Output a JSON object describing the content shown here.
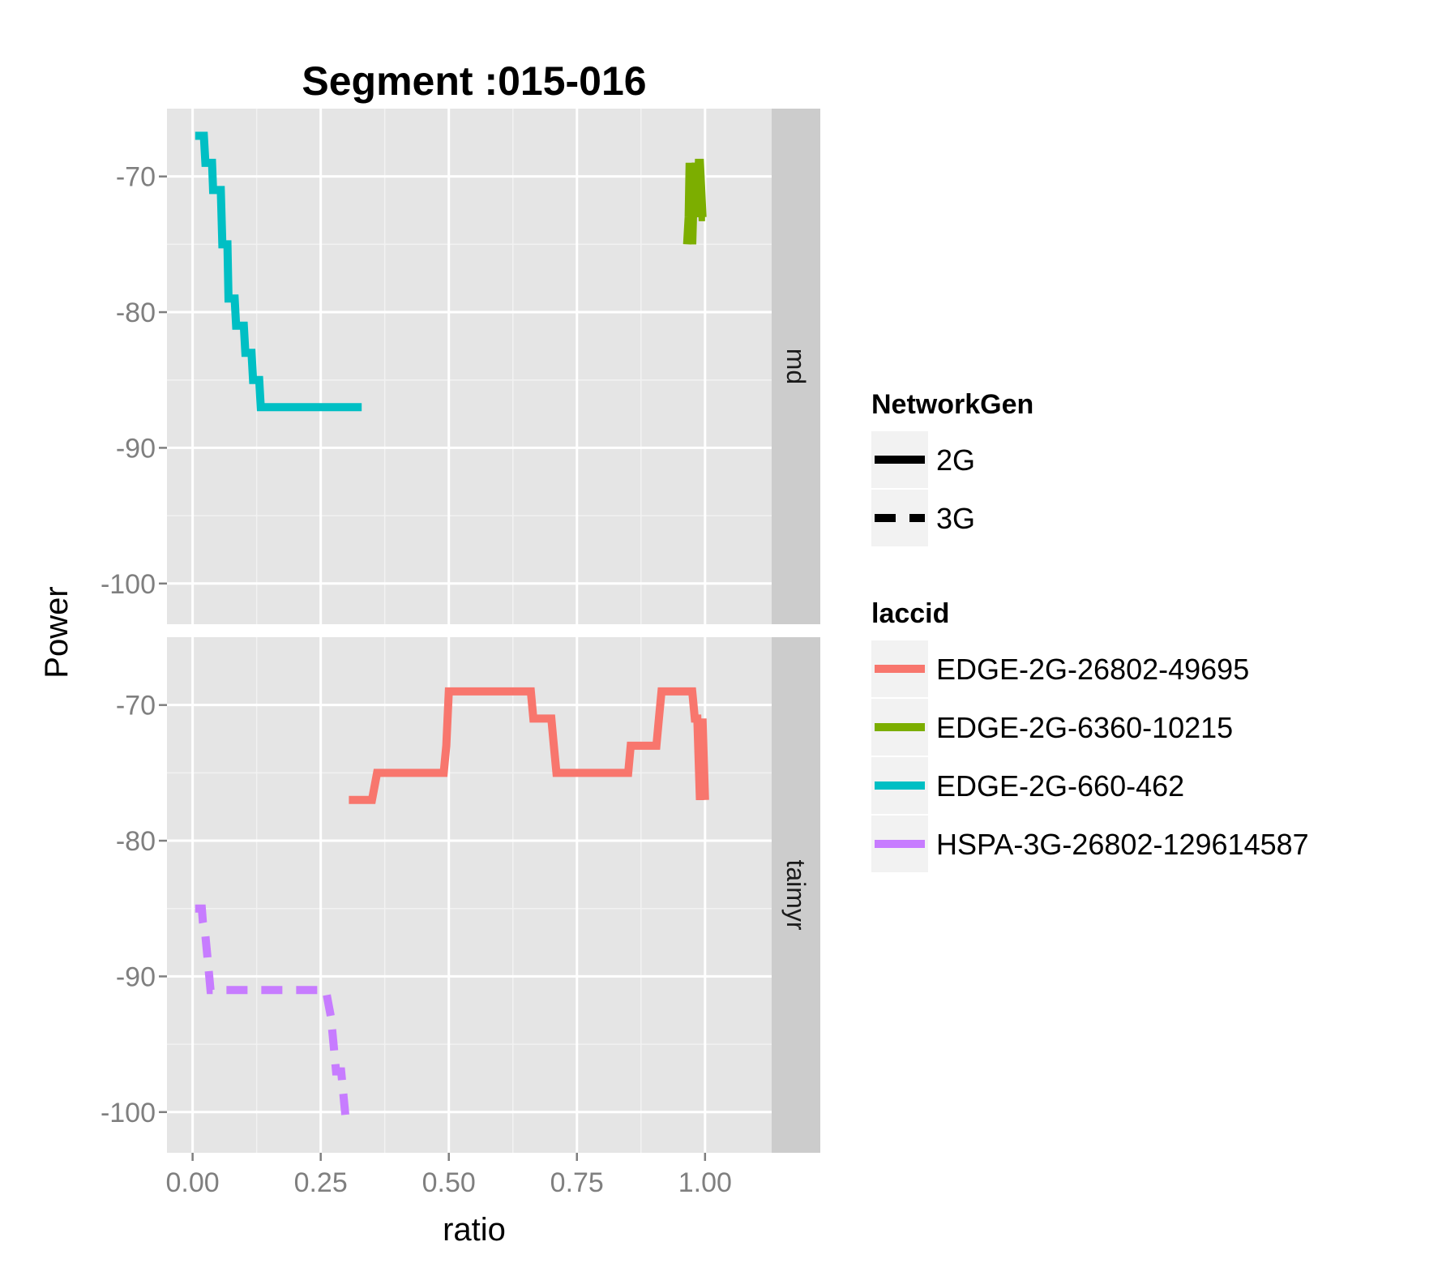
{
  "chart_data": {
    "type": "line",
    "title": "Segment :015-016",
    "xlabel": "ratio",
    "ylabel": "Power",
    "xlim": [
      -0.05,
      1.13
    ],
    "ylim": [
      -103,
      -65
    ],
    "x_ticks": [
      0,
      0.25,
      0.5,
      0.75,
      1
    ],
    "x_tick_labels": [
      "0.00",
      "0.25",
      "0.50",
      "0.75",
      "1.00"
    ],
    "y_ticks": [
      -100,
      -90,
      -80,
      -70
    ],
    "y_tick_labels": [
      "-100",
      "-90",
      "-80",
      "-70"
    ],
    "grid": true,
    "facets": [
      {
        "label": "md",
        "series": [
          {
            "name": "EDGE-2G-660-462",
            "linetype": "2G",
            "x": [
              0.005,
              0.022,
              0.025,
              0.038,
              0.04,
              0.055,
              0.058,
              0.068,
              0.07,
              0.082,
              0.085,
              0.1,
              0.103,
              0.115,
              0.118,
              0.13,
              0.133,
              0.147,
              0.15,
              0.16,
              0.33
            ],
            "y": [
              -67,
              -67,
              -69,
              -69,
              -71,
              -71,
              -75,
              -75,
              -79,
              -79,
              -81,
              -81,
              -83,
              -83,
              -85,
              -85,
              -87,
              -87,
              -87,
              -87,
              -87
            ]
          },
          {
            "name": "EDGE-2G-6360-10215",
            "linetype": "2G",
            "x": [
              0.965,
              0.968,
              0.97,
              0.975,
              0.978,
              0.982,
              0.985,
              0.988,
              0.99,
              0.995,
              1.0
            ],
            "y": [
              -75,
              -73,
              -69,
              -75,
              -71,
              -69,
              -73,
              -69,
              -69,
              -73,
              -73
            ]
          }
        ]
      },
      {
        "label": "taimyr",
        "series": [
          {
            "name": "EDGE-2G-26802-49695",
            "linetype": "2G",
            "x": [
              0.305,
              0.35,
              0.36,
              0.37,
              0.49,
              0.495,
              0.5,
              0.66,
              0.665,
              0.67,
              0.7,
              0.705,
              0.71,
              0.85,
              0.855,
              0.86,
              0.905,
              0.91,
              0.915,
              0.975,
              0.98,
              0.985,
              0.99,
              0.995,
              1.0
            ],
            "y": [
              -77,
              -77,
              -75,
              -75,
              -75,
              -73,
              -69,
              -69,
              -71,
              -71,
              -71,
              -73,
              -75,
              -75,
              -73,
              -73,
              -73,
              -71,
              -69,
              -69,
              -71,
              -71,
              -77,
              -71,
              -77
            ]
          },
          {
            "name": "HSPA-3G-26802-129614587",
            "linetype": "3G",
            "x": [
              0.005,
              0.018,
              0.02,
              0.025,
              0.03,
              0.035,
              0.04,
              0.25,
              0.26,
              0.265,
              0.27,
              0.275,
              0.28,
              0.29,
              0.295,
              0.3
            ],
            "y": [
              -85,
              -85,
              -86,
              -87,
              -89,
              -91,
              -91,
              -91,
              -91,
              -92,
              -93,
              -95,
              -97,
              -97,
              -99,
              -101
            ]
          }
        ]
      }
    ],
    "legend": {
      "placement": "right",
      "linetype_title": "NetworkGen",
      "linetype_entries": [
        {
          "name": "2G",
          "dash": "solid"
        },
        {
          "name": "3G",
          "dash": "dashed"
        }
      ],
      "color_title": "laccid",
      "color_entries": [
        {
          "name": "EDGE-2G-26802-49695",
          "color": "#F8766D"
        },
        {
          "name": "EDGE-2G-6360-10215",
          "color": "#7CAE00"
        },
        {
          "name": "EDGE-2G-660-462",
          "color": "#00BFC4"
        },
        {
          "name": "HSPA-3G-26802-129614587",
          "color": "#C77CFF"
        }
      ]
    },
    "colors": {
      "panel_bg": "#e5e5e5",
      "strip_bg": "#cccccc",
      "grid_major": "#ffffff",
      "grid_minor": "#f2f2f2"
    }
  }
}
